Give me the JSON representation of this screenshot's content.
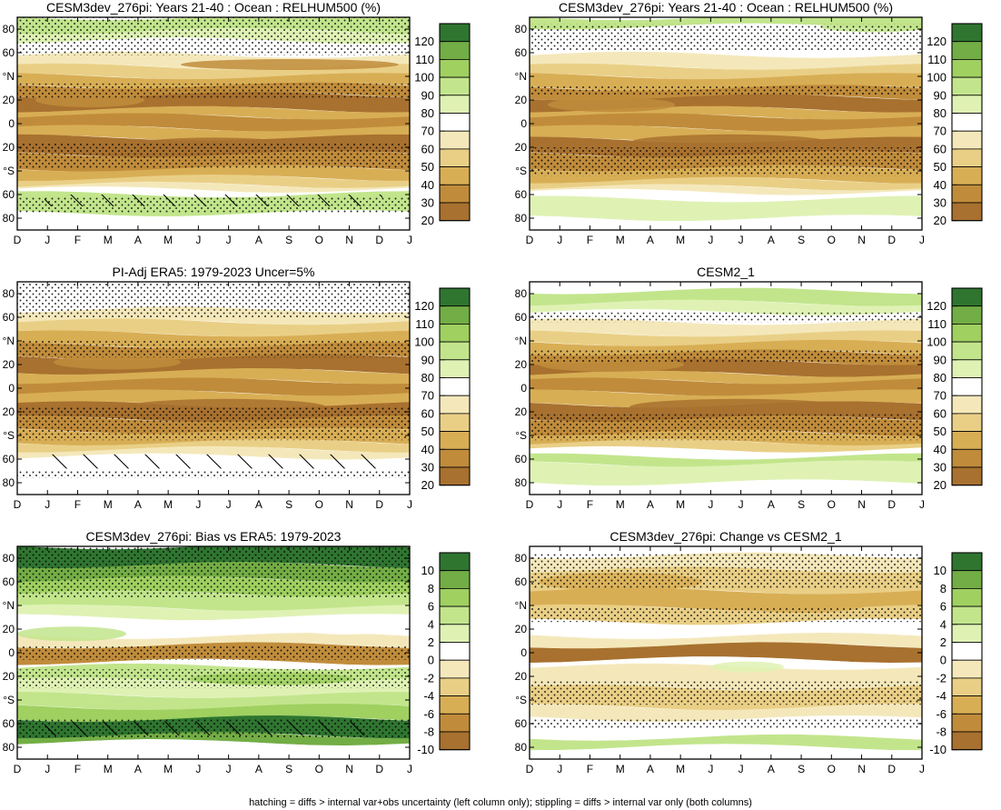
{
  "figure": {
    "caption": "hatching = diffs > internal var+obs uncertainty (left column only); stippling = diffs > internal var only (both columns)",
    "colors": {
      "brown_dark": "#a8712f",
      "brown": "#c08c3b",
      "tan": "#d8ae55",
      "sand": "#e9cf86",
      "cream": "#f4e8bb",
      "white": "#ffffff",
      "green_pale": "#dff2b4",
      "green_light": "#c2e58c",
      "green": "#9fd060",
      "green_mid": "#73ad45",
      "green_dark": "#2f7530"
    }
  },
  "chart_data": [
    {
      "type": "heatmap",
      "title": "CESM3dev_276pi: Years 21-40 : Ocean : RELHUM500 (%)",
      "x_ticklabels": [
        "D",
        "J",
        "F",
        "M",
        "A",
        "M",
        "J",
        "J",
        "A",
        "S",
        "O",
        "N",
        "D",
        "J"
      ],
      "y_ticklabels": [
        "80",
        "60",
        "°N",
        "20",
        "0",
        "20",
        "°S",
        "60",
        "80"
      ],
      "colorbar_labels": [
        "120",
        "110",
        "100",
        "90",
        "80",
        "70",
        "60",
        "50",
        "40",
        "30",
        "20"
      ],
      "ylim": [
        -90,
        90
      ],
      "stippling": "extensive in subtropics and polar latitudes",
      "hatching": "southern high latitudes 50S-70S"
    },
    {
      "type": "heatmap",
      "title": "CESM3dev_276pi: Years 21-40 : Ocean : RELHUM500 (%)",
      "x_ticklabels": [
        "D",
        "J",
        "F",
        "M",
        "A",
        "M",
        "J",
        "J",
        "A",
        "S",
        "O",
        "N",
        "D",
        "J"
      ],
      "y_ticklabels": [
        "80",
        "60",
        "°N",
        "20",
        "0",
        "20",
        "°S",
        "60",
        "80"
      ],
      "colorbar_labels": [
        "120",
        "110",
        "100",
        "90",
        "80",
        "70",
        "60",
        "50",
        "40",
        "30",
        "20"
      ],
      "ylim": [
        -90,
        90
      ],
      "stippling": "extensive in subtropics"
    },
    {
      "type": "heatmap",
      "title": "PI-Adj ERA5: 1979-2023 Uncer=5%",
      "x_ticklabels": [
        "D",
        "J",
        "F",
        "M",
        "A",
        "M",
        "J",
        "J",
        "A",
        "S",
        "O",
        "N",
        "D",
        "J"
      ],
      "y_ticklabels": [
        "80",
        "60",
        "°N",
        "20",
        "0",
        "20",
        "°S",
        "60",
        "80"
      ],
      "colorbar_labels": [
        "120",
        "110",
        "100",
        "90",
        "80",
        "70",
        "60",
        "50",
        "40",
        "30",
        "20"
      ],
      "ylim": [
        -90,
        90
      ],
      "stippling": "north polar and subtropics",
      "hatching": "southern high latitudes 50S-70S"
    },
    {
      "type": "heatmap",
      "title": "CESM2_1",
      "x_ticklabels": [
        "D",
        "J",
        "F",
        "M",
        "A",
        "M",
        "J",
        "J",
        "A",
        "S",
        "O",
        "N",
        "D",
        "J"
      ],
      "y_ticklabels": [
        "80",
        "60",
        "°N",
        "20",
        "0",
        "20",
        "°S",
        "60",
        "80"
      ],
      "colorbar_labels": [
        "120",
        "110",
        "100",
        "90",
        "80",
        "70",
        "60",
        "50",
        "40",
        "30",
        "20"
      ],
      "ylim": [
        -90,
        90
      ],
      "stippling": "subtropics"
    },
    {
      "type": "heatmap",
      "title": "CESM3dev_276pi: Bias vs ERA5: 1979-2023",
      "x_ticklabels": [
        "D",
        "J",
        "F",
        "M",
        "A",
        "M",
        "J",
        "J",
        "A",
        "S",
        "O",
        "N",
        "D",
        "J"
      ],
      "y_ticklabels": [
        "80",
        "60",
        "°N",
        "20",
        "0",
        "20",
        "°S",
        "60",
        "80"
      ],
      "colorbar_labels": [
        "10",
        "8",
        "6",
        "4",
        "2",
        "0",
        "-2",
        "-4",
        "-6",
        "-8",
        "-10"
      ],
      "ylim": [
        -90,
        90
      ],
      "stippling": "northern high latitudes and equatorial band",
      "hatching": "southern high latitudes 55S-70S"
    },
    {
      "type": "heatmap",
      "title": "CESM3dev_276pi: Change vs CESM2_1",
      "x_ticklabels": [
        "D",
        "J",
        "F",
        "M",
        "A",
        "M",
        "J",
        "J",
        "A",
        "S",
        "O",
        "N",
        "D",
        "J"
      ],
      "y_ticklabels": [
        "80",
        "60",
        "°N",
        "20",
        "0",
        "20",
        "°S",
        "60",
        "80"
      ],
      "colorbar_labels": [
        "10",
        "8",
        "6",
        "4",
        "2",
        "0",
        "-2",
        "-4",
        "-6",
        "-8",
        "-10"
      ],
      "ylim": [
        -90,
        90
      ],
      "stippling": "northern mid-latitudes and subtropics"
    }
  ]
}
